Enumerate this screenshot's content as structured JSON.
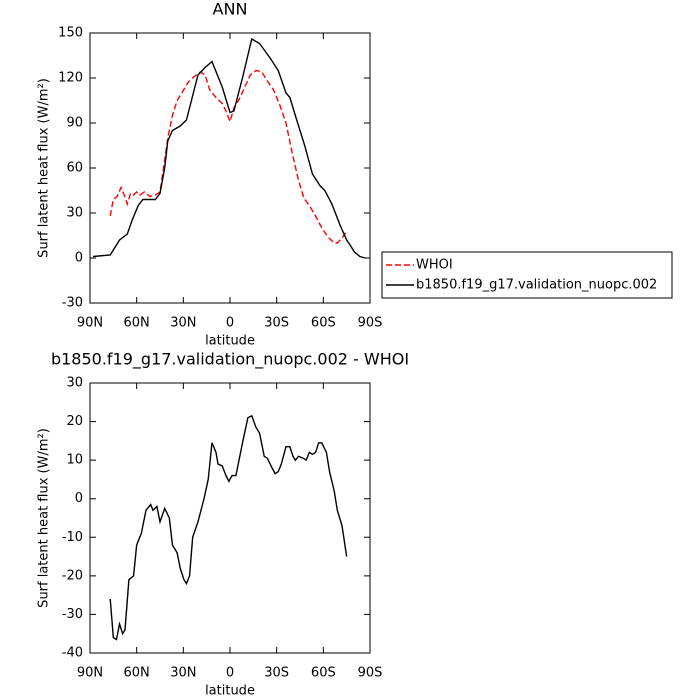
{
  "chart_data": [
    {
      "type": "line",
      "title": "ANN",
      "xlabel": "latitude",
      "ylabel": "Surf latent heat flux (W/m²)",
      "xlim": [
        90,
        -90
      ],
      "xticks": [
        {
          "value": 90,
          "label": "90N"
        },
        {
          "value": 60,
          "label": "60N"
        },
        {
          "value": 30,
          "label": "30N"
        },
        0,
        {
          "value": -30,
          "label": "30S"
        },
        {
          "value": -60,
          "label": "60S"
        },
        {
          "value": -90,
          "label": "90S"
        }
      ],
      "ylim": [
        -30,
        150
      ],
      "yticks": [
        -30,
        0,
        30,
        60,
        90,
        120,
        150
      ],
      "legend": "outside right",
      "series": [
        {
          "name": "WHOI",
          "color": "#ff0000",
          "line_style": "dashed",
          "x": [
            77,
            75,
            72.6,
            70,
            68,
            66,
            64,
            62,
            60,
            58,
            55,
            51.5,
            48,
            45,
            43,
            40,
            37,
            34,
            31,
            27,
            23,
            19,
            16,
            13,
            9,
            5,
            2.6,
            0,
            -2.5,
            -6,
            -10,
            -13,
            -16.7,
            -20.5,
            -24,
            -28,
            -32,
            -36,
            -40,
            -44,
            -47.5,
            -51,
            -55,
            -59,
            -63,
            -67,
            -69,
            -72.6,
            -75
          ],
          "values": [
            28,
            39,
            41,
            47,
            42,
            36,
            43,
            42,
            44,
            42,
            44,
            41,
            42,
            44,
            58,
            80,
            95,
            105,
            110,
            117,
            121,
            124,
            122,
            112,
            107,
            103,
            98,
            91,
            100,
            106,
            115,
            122,
            125,
            124,
            118,
            112,
            102,
            90,
            70,
            52,
            40,
            35,
            28,
            20,
            14,
            10,
            10,
            14,
            18
          ]
        },
        {
          "name": "b1850.f19_g17.validation_nuopc.002",
          "color": "#000000",
          "line_style": "solid",
          "x": [
            88,
            77,
            74,
            71,
            66,
            63,
            59,
            56,
            48,
            45,
            42,
            40,
            37,
            32,
            28,
            20.6,
            16,
            11.6,
            5,
            0,
            -2.5,
            -8,
            -14,
            -19,
            -26,
            -31,
            -36,
            -38.5,
            -42,
            -48,
            -53,
            -58,
            -61,
            -65.5,
            -70.7,
            -75,
            -77,
            -80,
            -83.5,
            -87
          ],
          "values": [
            1,
            2,
            7,
            12,
            16,
            25,
            35,
            39,
            39,
            43,
            60,
            78,
            85,
            88,
            92,
            122,
            127,
            131,
            114,
            97,
            98,
            120,
            146,
            143,
            133,
            125,
            110,
            107,
            95,
            75,
            56,
            48,
            45,
            36,
            22,
            12,
            9,
            4,
            1,
            0
          ]
        }
      ]
    },
    {
      "type": "line",
      "title": "b1850.f19_g17.validation_nuopc.002 - WHOI",
      "xlabel": "latitude",
      "ylabel": "Surf latent heat flux (W/m²)",
      "xlim": [
        90,
        -90
      ],
      "xticks": [
        {
          "value": 90,
          "label": "90N"
        },
        {
          "value": 60,
          "label": "60N"
        },
        {
          "value": 30,
          "label": "30N"
        },
        0,
        {
          "value": -30,
          "label": "30S"
        },
        {
          "value": -60,
          "label": "60S"
        },
        {
          "value": -90,
          "label": "90S"
        }
      ],
      "ylim": [
        -40,
        30
      ],
      "yticks": [
        -40,
        -30,
        -20,
        -10,
        0,
        10,
        20,
        30
      ],
      "color": "#000000",
      "x": [
        77,
        75,
        73,
        71,
        69,
        67.5,
        65,
        62,
        60,
        57,
        54,
        51,
        49.5,
        47,
        45,
        42,
        39,
        37,
        34,
        32,
        29.6,
        28,
        26,
        24,
        20.6,
        16.7,
        14,
        11.6,
        9,
        7.7,
        5,
        2.6,
        0.7,
        -1.3,
        -3.8,
        -5.8,
        -8.3,
        -11.5,
        -14,
        -16.7,
        -19,
        -22,
        -24,
        -27,
        -29,
        -31,
        -33,
        -36,
        -38.5,
        -40.5,
        -42,
        -44,
        -47,
        -49,
        -51,
        -53,
        -55,
        -57,
        -59,
        -62,
        -64,
        -67,
        -69,
        -72,
        -75
      ],
      "values": [
        -26,
        -36,
        -36.5,
        -32.5,
        -35,
        -34,
        -21,
        -20,
        -12,
        -9,
        -3,
        -1.5,
        -3,
        -2,
        -6,
        -2.5,
        -5,
        -12,
        -14,
        -18,
        -21,
        -22,
        -20,
        -10,
        -6,
        0,
        5,
        14.5,
        12,
        9,
        8.5,
        6,
        4.5,
        6,
        6,
        10,
        15,
        21,
        21.5,
        18.5,
        17,
        11,
        10.5,
        8,
        6.5,
        7,
        9,
        13.5,
        13.5,
        11,
        10,
        11,
        10.5,
        10,
        12,
        11.5,
        12,
        14.5,
        14.5,
        12,
        7,
        2,
        -3,
        -7,
        -15
      ]
    }
  ]
}
